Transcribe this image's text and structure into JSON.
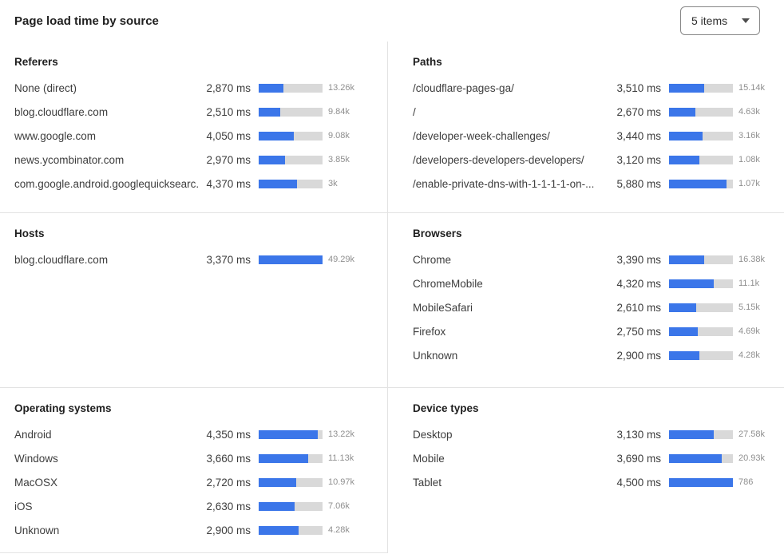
{
  "header": {
    "title": "Page load time by source",
    "items_dropdown": {
      "value": "5 items"
    }
  },
  "colors": {
    "bar_fill": "#3b76e9",
    "bar_track": "#d9d9d9",
    "divider": "#e3e3e3"
  },
  "sections": {
    "referers": {
      "title": "Referers",
      "rows": [
        {
          "label": "None (direct)",
          "time": "2,870 ms",
          "count": "13.26k",
          "bar_pct": 39
        },
        {
          "label": "blog.cloudflare.com",
          "time": "2,510 ms",
          "count": "9.84k",
          "bar_pct": 34
        },
        {
          "label": "www.google.com",
          "time": "4,050 ms",
          "count": "9.08k",
          "bar_pct": 55
        },
        {
          "label": "news.ycombinator.com",
          "time": "2,970 ms",
          "count": "3.85k",
          "bar_pct": 41
        },
        {
          "label": "com.google.android.googlequicksearc...",
          "time": "4,370 ms",
          "count": "3k",
          "bar_pct": 60
        }
      ]
    },
    "paths": {
      "title": "Paths",
      "rows": [
        {
          "label": "/cloudflare-pages-ga/",
          "time": "3,510 ms",
          "count": "15.14k",
          "bar_pct": 55
        },
        {
          "label": "/",
          "time": "2,670 ms",
          "count": "4.63k",
          "bar_pct": 41
        },
        {
          "label": "/developer-week-challenges/",
          "time": "3,440 ms",
          "count": "3.16k",
          "bar_pct": 53
        },
        {
          "label": "/developers-developers-developers/",
          "time": "3,120 ms",
          "count": "1.08k",
          "bar_pct": 48
        },
        {
          "label": "/enable-private-dns-with-1-1-1-1-on-...",
          "time": "5,880 ms",
          "count": "1.07k",
          "bar_pct": 90
        }
      ]
    },
    "hosts": {
      "title": "Hosts",
      "rows": [
        {
          "label": "blog.cloudflare.com",
          "time": "3,370 ms",
          "count": "49.29k",
          "bar_pct": 100
        }
      ]
    },
    "browsers": {
      "title": "Browsers",
      "rows": [
        {
          "label": "Chrome",
          "time": "3,390 ms",
          "count": "16.38k",
          "bar_pct": 55
        },
        {
          "label": "ChromeMobile",
          "time": "4,320 ms",
          "count": "11.1k",
          "bar_pct": 70
        },
        {
          "label": "MobileSafari",
          "time": "2,610 ms",
          "count": "5.15k",
          "bar_pct": 42
        },
        {
          "label": "Firefox",
          "time": "2,750 ms",
          "count": "4.69k",
          "bar_pct": 45
        },
        {
          "label": "Unknown",
          "time": "2,900 ms",
          "count": "4.28k",
          "bar_pct": 47
        }
      ]
    },
    "operating_systems": {
      "title": "Operating systems",
      "rows": [
        {
          "label": "Android",
          "time": "4,350 ms",
          "count": "13.22k",
          "bar_pct": 93
        },
        {
          "label": "Windows",
          "time": "3,660 ms",
          "count": "11.13k",
          "bar_pct": 78
        },
        {
          "label": "MacOSX",
          "time": "2,720 ms",
          "count": "10.97k",
          "bar_pct": 59
        },
        {
          "label": "iOS",
          "time": "2,630 ms",
          "count": "7.06k",
          "bar_pct": 56
        },
        {
          "label": "Unknown",
          "time": "2,900 ms",
          "count": "4.28k",
          "bar_pct": 63
        }
      ]
    },
    "device_types": {
      "title": "Device types",
      "rows": [
        {
          "label": "Desktop",
          "time": "3,130 ms",
          "count": "27.58k",
          "bar_pct": 70
        },
        {
          "label": "Mobile",
          "time": "3,690 ms",
          "count": "20.93k",
          "bar_pct": 82
        },
        {
          "label": "Tablet",
          "time": "4,500 ms",
          "count": "786",
          "bar_pct": 100
        }
      ]
    }
  }
}
